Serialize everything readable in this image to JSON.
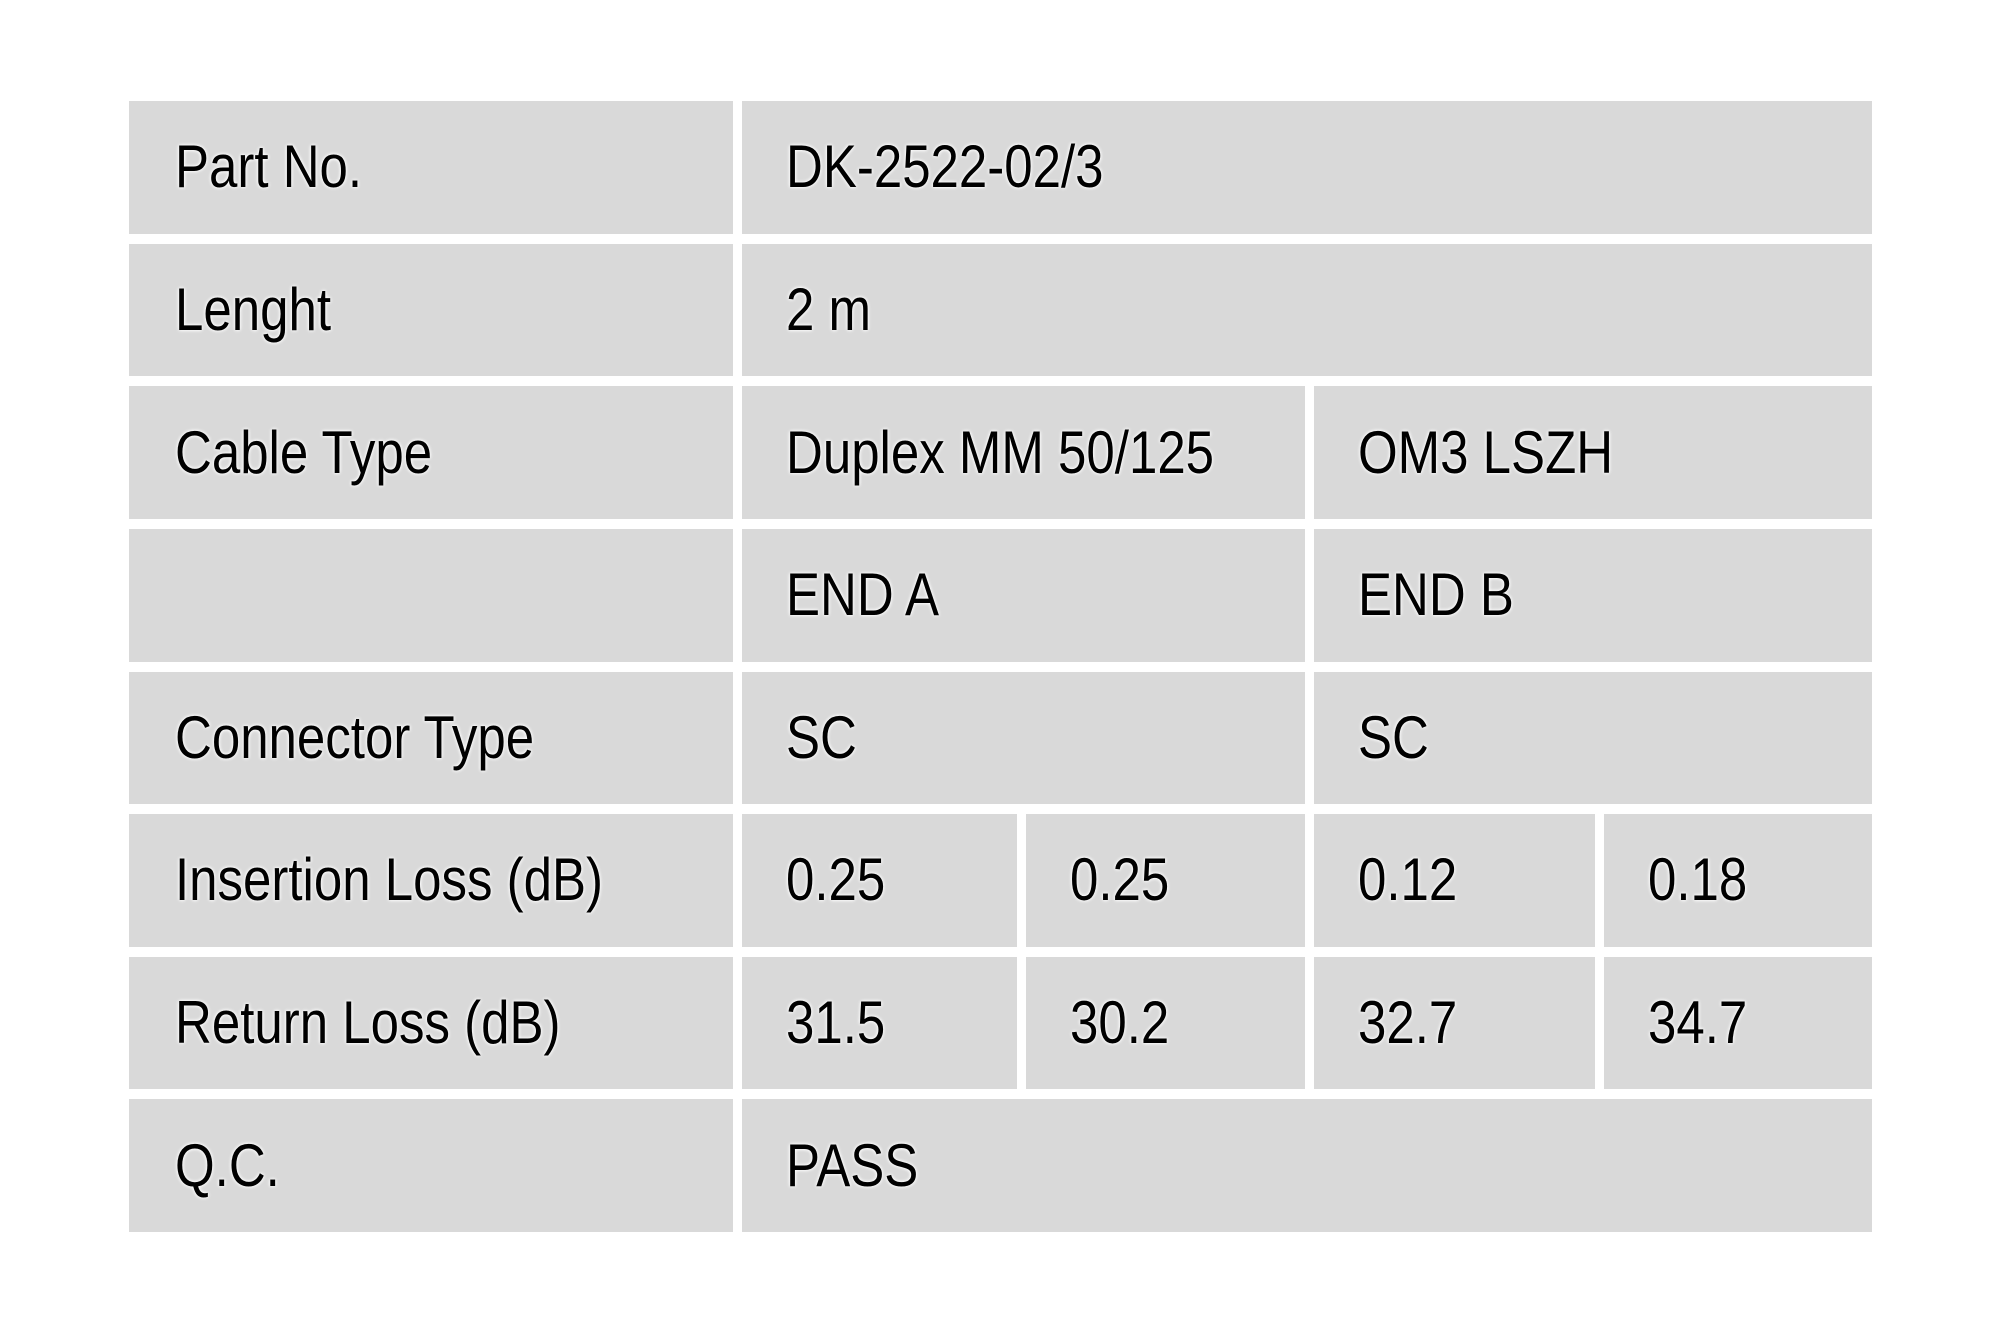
{
  "colors": {
    "cell_bg": "#d9d9d9",
    "page_bg": "#ffffff",
    "text": "#000000"
  },
  "table": {
    "rows": [
      {
        "label": "Part No.",
        "values": [
          {
            "text": "DK-2522-02/3"
          }
        ]
      },
      {
        "label": "Lenght",
        "values": [
          {
            "text": "2 m"
          }
        ]
      },
      {
        "label": "Cable Type",
        "values": [
          {
            "text": "Duplex MM 50/125"
          },
          {
            "text": "OM3 LSZH"
          }
        ]
      },
      {
        "label": "",
        "values": [
          {
            "text": "END A"
          },
          {
            "text": "END B"
          }
        ]
      },
      {
        "label": "Connector Type",
        "values": [
          {
            "text": "SC"
          },
          {
            "text": "SC"
          }
        ]
      },
      {
        "label": "Insertion Loss (dB)",
        "values": [
          {
            "text": "0.25"
          },
          {
            "text": "0.25"
          },
          {
            "text": "0.12"
          },
          {
            "text": "0.18"
          }
        ]
      },
      {
        "label": "Return Loss (dB)",
        "values": [
          {
            "text": "31.5"
          },
          {
            "text": "30.2"
          },
          {
            "text": "32.7"
          },
          {
            "text": "34.7"
          }
        ]
      },
      {
        "label": "Q.C.",
        "values": [
          {
            "text": "PASS"
          }
        ]
      }
    ]
  }
}
